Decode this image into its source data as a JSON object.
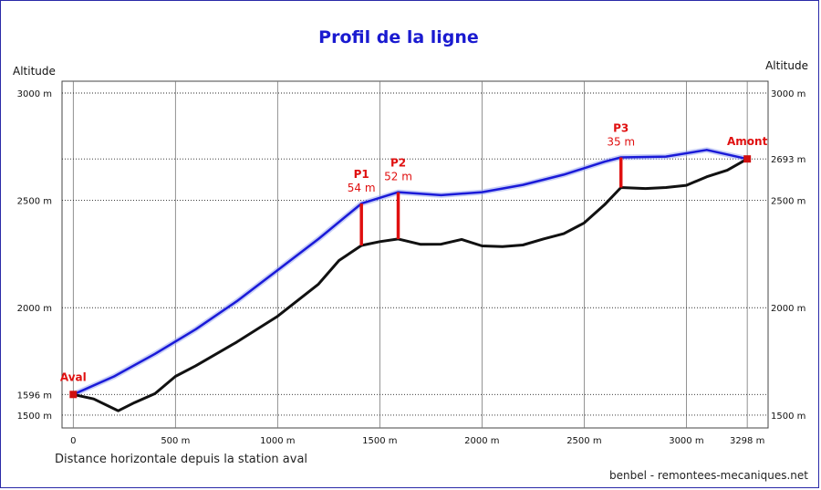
{
  "chart_data": {
    "type": "line",
    "title": "Profil de la ligne",
    "ylabel_left": "Altitude",
    "ylabel_right": "Altitude",
    "xlabel": "Distance horizontale depuis la station aval",
    "credit": "benbel - remontees-mecaniques.net",
    "x_ticks": [
      {
        "value": 0,
        "label": "0"
      },
      {
        "value": 500,
        "label": "500 m"
      },
      {
        "value": 1000,
        "label": "1000 m"
      },
      {
        "value": 1500,
        "label": "1500 m"
      },
      {
        "value": 2000,
        "label": "2000 m"
      },
      {
        "value": 2500,
        "label": "2500 m"
      },
      {
        "value": 3000,
        "label": "3000 m"
      },
      {
        "value": 3298,
        "label": "3298 m"
      }
    ],
    "y_ticks_left": [
      {
        "value": 1500,
        "label": "1500 m"
      },
      {
        "value": 1596,
        "label": "1596 m"
      },
      {
        "value": 2000,
        "label": "2000 m"
      },
      {
        "value": 2500,
        "label": "2500 m"
      },
      {
        "value": 3000,
        "label": "3000 m"
      }
    ],
    "y_ticks_right": [
      {
        "value": 1500,
        "label": "1500 m"
      },
      {
        "value": 2000,
        "label": "2000 m"
      },
      {
        "value": 2500,
        "label": "2500 m"
      },
      {
        "value": 2693,
        "label": "2693 m"
      },
      {
        "value": 3000,
        "label": "3000 m"
      }
    ],
    "xlim": [
      -55,
      3400
    ],
    "ylim": [
      1440,
      3055
    ],
    "grid": true,
    "series": [
      {
        "color": "#1a1ad8",
        "x": [
          0,
          200,
          400,
          600,
          800,
          1000,
          1200,
          1410,
          1590,
          1800,
          2000,
          2200,
          2400,
          2600,
          2680,
          2900,
          3100,
          3298
        ],
        "y": [
          1596,
          1680,
          1785,
          1900,
          2030,
          2175,
          2320,
          2485,
          2538,
          2524,
          2538,
          2572,
          2620,
          2680,
          2700,
          2704,
          2735,
          2693
        ]
      },
      {
        "color": "#111111",
        "x": [
          0,
          100,
          220,
          300,
          400,
          500,
          600,
          800,
          1000,
          1200,
          1300,
          1410,
          1500,
          1590,
          1700,
          1800,
          1900,
          2000,
          2100,
          2200,
          2300,
          2400,
          2500,
          2600,
          2680,
          2800,
          2900,
          3000,
          3100,
          3200,
          3298
        ],
        "y": [
          1596,
          1575,
          1520,
          1558,
          1600,
          1680,
          1730,
          1840,
          1960,
          2110,
          2220,
          2290,
          2308,
          2320,
          2295,
          2296,
          2318,
          2288,
          2285,
          2292,
          2320,
          2345,
          2395,
          2480,
          2560,
          2555,
          2560,
          2570,
          2610,
          2640,
          2693
        ]
      }
    ],
    "stations": [
      {
        "name": "Aval",
        "height_label": "",
        "x": 0,
        "y": 1596
      },
      {
        "name": "P1",
        "height_label": "54 m",
        "x": 1410,
        "y": 2485,
        "pylon": true
      },
      {
        "name": "P2",
        "height_label": "52 m",
        "x": 1590,
        "y": 2538,
        "pylon": true
      },
      {
        "name": "P3",
        "height_label": "35 m",
        "x": 2680,
        "y": 2700,
        "pylon": true
      },
      {
        "name": "Amont",
        "height_label": "",
        "x": 3298,
        "y": 2693
      }
    ]
  }
}
